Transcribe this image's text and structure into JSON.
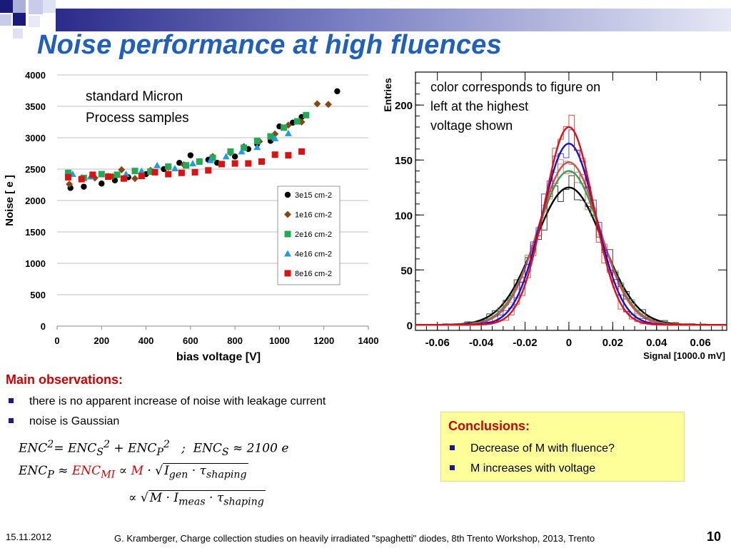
{
  "slide": {
    "title": "Noise performance at high fluences",
    "page_number": "10",
    "date": "15.11.2012",
    "footer": "G. Kramberger, Charge collection studies on heavily irradiated \"spaghetti\" diodes, 8th Trento Workshop, 2013, Trento"
  },
  "left_chart": {
    "annotation_line1": "standard Micron",
    "annotation_line2": "Process samples"
  },
  "right_chart": {
    "annotation_line1": "color corresponds to figure on",
    "annotation_line2": "left at the highest",
    "annotation_line3": "voltage shown"
  },
  "observations": {
    "title": "Main observations:",
    "items": [
      "there is no apparent increase of noise with leakage current",
      "noise is Gaussian"
    ]
  },
  "equations": {
    "line1": "ENC² = ENC_S² + ENC_P²  ;  ENC_S ≈ 2100 e",
    "line2": "ENC_P ≈ ENC_MI ∝ M · √(I_gen · τ_shaping)",
    "line3": "∝ √(M · I_meas · τ_shaping)"
  },
  "conclusions": {
    "title": "Conclusions:",
    "items": [
      "Decrease of M with fluence?",
      "M increases with voltage"
    ]
  },
  "colors": {
    "title": "#1f5fbf",
    "heading_red": "#d00000",
    "bullet": "#1a1a8c",
    "conclusion_bg": "#ffff99",
    "s1": "#000000",
    "s2": "#8b4513",
    "s3": "#22aa55",
    "s4": "#1e9ee0",
    "s5": "#e01010"
  },
  "chart_data": [
    {
      "type": "scatter",
      "xlabel": "bias voltage [V]",
      "ylabel": "Noise [ e ]",
      "xlim": [
        0,
        1400
      ],
      "ylim": [
        0,
        4000
      ],
      "xticks": [
        0,
        200,
        400,
        600,
        800,
        1000,
        1200,
        1400
      ],
      "yticks": [
        0,
        500,
        1000,
        1500,
        2000,
        2500,
        3000,
        3500,
        4000
      ],
      "grid": "horizontal",
      "legend_position": "right",
      "series": [
        {
          "name": "3e15 cm-2",
          "marker": "circle",
          "color": "#000000",
          "points": [
            [
              60,
              2200
            ],
            [
              120,
              2220
            ],
            [
              200,
              2270
            ],
            [
              260,
              2320
            ],
            [
              320,
              2370
            ],
            [
              400,
              2420
            ],
            [
              480,
              2500
            ],
            [
              550,
              2600
            ],
            [
              600,
              2720
            ],
            [
              680,
              2650
            ],
            [
              720,
              2600
            ],
            [
              800,
              2700
            ],
            [
              860,
              2820
            ],
            [
              900,
              2900
            ],
            [
              960,
              2950
            ],
            [
              1000,
              3180
            ],
            [
              1060,
              3240
            ],
            [
              1100,
              3330
            ],
            [
              1260,
              3740
            ]
          ]
        },
        {
          "name": "1e16 cm-2",
          "marker": "diamond",
          "color": "#8b4513",
          "points": [
            [
              55,
              2260
            ],
            [
              110,
              2360
            ],
            [
              170,
              2360
            ],
            [
              250,
              2380
            ],
            [
              290,
              2490
            ],
            [
              350,
              2350
            ],
            [
              420,
              2480
            ],
            [
              500,
              2530
            ],
            [
              570,
              2570
            ],
            [
              640,
              2620
            ],
            [
              700,
              2700
            ],
            [
              780,
              2760
            ],
            [
              840,
              2860
            ],
            [
              910,
              2940
            ],
            [
              980,
              3060
            ],
            [
              1040,
              3200
            ],
            [
              1100,
              3250
            ],
            [
              1170,
              3540
            ],
            [
              1220,
              3530
            ]
          ]
        },
        {
          "name": "2e16 cm-2",
          "marker": "square",
          "color": "#22aa55",
          "points": [
            [
              50,
              2440
            ],
            [
              120,
              2360
            ],
            [
              200,
              2420
            ],
            [
              270,
              2410
            ],
            [
              350,
              2470
            ],
            [
              420,
              2460
            ],
            [
              500,
              2540
            ],
            [
              580,
              2560
            ],
            [
              640,
              2620
            ],
            [
              700,
              2680
            ],
            [
              780,
              2780
            ],
            [
              840,
              2840
            ],
            [
              900,
              2950
            ],
            [
              960,
              3020
            ],
            [
              1020,
              3160
            ],
            [
              1080,
              3260
            ],
            [
              1120,
              3360
            ]
          ]
        },
        {
          "name": "4e16 cm-2",
          "marker": "triangle",
          "color": "#1e9ee0",
          "points": [
            [
              70,
              2420
            ],
            [
              150,
              2380
            ],
            [
              230,
              2390
            ],
            [
              310,
              2420
            ],
            [
              380,
              2470
            ],
            [
              450,
              2560
            ],
            [
              530,
              2510
            ],
            [
              610,
              2590
            ],
            [
              690,
              2640
            ],
            [
              760,
              2700
            ],
            [
              830,
              2780
            ],
            [
              900,
              2850
            ],
            [
              980,
              2990
            ],
            [
              1040,
              3070
            ]
          ]
        },
        {
          "name": "8e16 cm-2",
          "marker": "square",
          "color": "#e01010",
          "points": [
            [
              50,
              2370
            ],
            [
              110,
              2340
            ],
            [
              160,
              2410
            ],
            [
              230,
              2380
            ],
            [
              300,
              2350
            ],
            [
              380,
              2390
            ],
            [
              440,
              2450
            ],
            [
              500,
              2420
            ],
            [
              560,
              2440
            ],
            [
              620,
              2450
            ],
            [
              680,
              2480
            ],
            [
              740,
              2580
            ],
            [
              800,
              2590
            ],
            [
              860,
              2590
            ],
            [
              920,
              2620
            ],
            [
              980,
              2730
            ],
            [
              1040,
              2720
            ],
            [
              1100,
              2780
            ]
          ]
        }
      ]
    },
    {
      "type": "line",
      "xlabel": "Signal [1000.0 mV]",
      "ylabel": "Entries",
      "xlim": [
        -0.07,
        0.072
      ],
      "ylim": [
        -5,
        230
      ],
      "xticks": [
        -0.06,
        -0.04,
        -0.02,
        0,
        0.02,
        0.04,
        0.06
      ],
      "xtick_labels": [
        "-0.06",
        "-0.04",
        "-0.02",
        "0",
        "0.02",
        "0.04",
        "0.06"
      ],
      "yticks": [
        0,
        50,
        100,
        150,
        200
      ],
      "series": [
        {
          "color": "#000000",
          "amplitude": 125,
          "mean": 0,
          "sigma": 0.0155
        },
        {
          "color": "#22aa55",
          "amplitude": 140,
          "mean": 0,
          "sigma": 0.0143
        },
        {
          "color": "#e04848",
          "amplitude": 148,
          "mean": 0,
          "sigma": 0.0138
        },
        {
          "color": "#1010e0",
          "amplitude": 165,
          "mean": 0,
          "sigma": 0.0122
        },
        {
          "color": "#e01010",
          "amplitude": 180,
          "mean": 0,
          "sigma": 0.0112
        }
      ]
    }
  ]
}
